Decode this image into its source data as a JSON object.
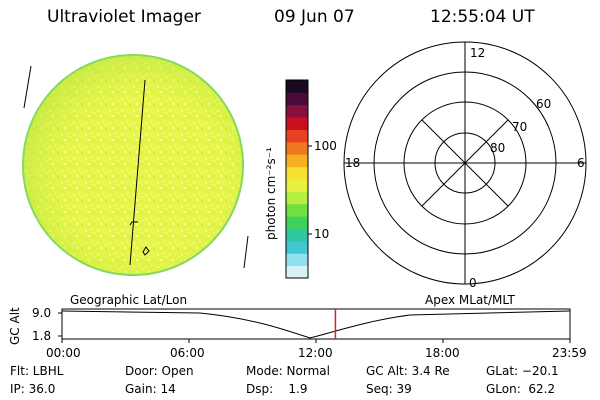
{
  "header": {
    "title": "Ultraviolet Imager",
    "date": "09 Jun 07",
    "time": "12:55:04 UT"
  },
  "colorbar": {
    "unit_label": "photon cm⁻²s⁻¹",
    "ticks": [
      "100",
      "10"
    ],
    "colors": [
      "#1a0a20",
      "#4a0a3a",
      "#8a1040",
      "#c81020",
      "#e84020",
      "#f07820",
      "#f8b020",
      "#f8e030",
      "#e8f040",
      "#b8f040",
      "#70e040",
      "#40d060",
      "#30c8a0",
      "#40c8d0",
      "#90e0f0",
      "#d8f0f8"
    ]
  },
  "image_panel": {
    "fill_color": "#e8f840",
    "edge_color": "#7ad860"
  },
  "polar_grid": {
    "mlt_labels": [
      "12",
      "18",
      "6",
      "0"
    ],
    "lat_labels": [
      "60",
      "70",
      "80"
    ]
  },
  "timeline": {
    "left_title": "Geographic Lat/Lon",
    "right_title": "Apex MLat/MLT",
    "ylabel": "GC Alt",
    "y_ticks": [
      "9.0",
      "1.8"
    ],
    "x_ticks": [
      "00:00",
      "06:00",
      "12:00",
      "18:00",
      "23:59"
    ],
    "marker_color": "#e02020",
    "marker_time_hours": 12.918
  },
  "info": {
    "flt": "Flt: LBHL",
    "ip": "IP: 36.0",
    "door": "Door: Open",
    "gain": "Gain: 14",
    "mode": "Mode: Normal",
    "dsp": "Dsp:    1.9",
    "gc_alt": "GC Alt: 3.4 Re",
    "seq": "Seq: 39",
    "glat": "GLat: −20.1",
    "glon": "GLon:  62.2"
  }
}
